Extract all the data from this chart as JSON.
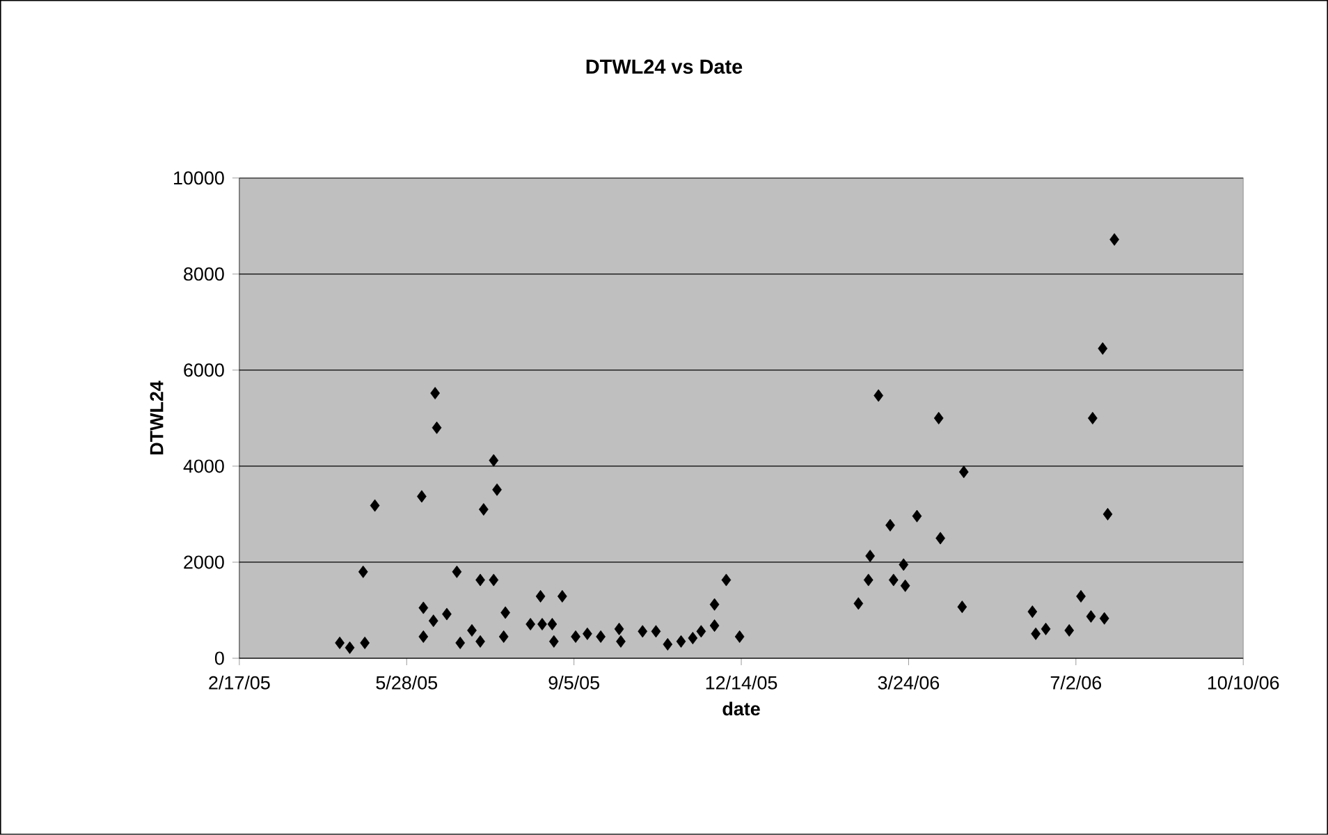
{
  "chart_data": {
    "type": "scatter",
    "title": "DTWL24 vs Date",
    "xlabel": "date",
    "ylabel": "DTWL24",
    "x": [
      "2005-04-18",
      "2005-04-24",
      "2005-05-03",
      "2005-05-02",
      "2005-05-09",
      "2005-06-06",
      "2005-06-07",
      "2005-06-07",
      "2005-06-13",
      "2005-06-14",
      "2005-06-15",
      "2005-06-21",
      "2005-06-27",
      "2005-06-29",
      "2005-07-06",
      "2005-07-11",
      "2005-07-13",
      "2005-07-11",
      "2005-07-19",
      "2005-07-19",
      "2005-07-21",
      "2005-07-25",
      "2005-07-26",
      "2005-08-10",
      "2005-08-16",
      "2005-08-17",
      "2005-08-23",
      "2005-08-24",
      "2005-08-29",
      "2005-09-06",
      "2005-09-13",
      "2005-09-21",
      "2005-10-02",
      "2005-10-03",
      "2005-10-16",
      "2005-10-24",
      "2005-10-31",
      "2005-11-08",
      "2005-11-15",
      "2005-11-20",
      "2005-11-28",
      "2005-11-28",
      "2005-12-05",
      "2005-12-13",
      "2006-02-22",
      "2006-02-28",
      "2006-03-01",
      "2006-03-06",
      "2006-03-13",
      "2006-03-15",
      "2006-03-21",
      "2006-03-22",
      "2006-03-29",
      "2006-04-11",
      "2006-04-12",
      "2006-04-25",
      "2006-04-26",
      "2006-06-06",
      "2006-06-08",
      "2006-06-14",
      "2006-06-28",
      "2006-07-05",
      "2006-07-12",
      "2006-07-11",
      "2006-07-18",
      "2006-07-19",
      "2006-07-21",
      "2006-07-25"
    ],
    "values": [
      320,
      220,
      320,
      1800,
      3180,
      3370,
      1050,
      450,
      780,
      5520,
      4800,
      920,
      1800,
      320,
      580,
      350,
      3100,
      1630,
      1630,
      4120,
      3510,
      450,
      950,
      710,
      1290,
      710,
      710,
      350,
      1290,
      450,
      510,
      450,
      610,
      350,
      560,
      560,
      290,
      350,
      420,
      560,
      680,
      1120,
      1630,
      450,
      1140,
      1630,
      2130,
      5470,
      2770,
      1630,
      1950,
      1510,
      2960,
      5000,
      2500,
      1070,
      3880,
      970,
      510,
      610,
      580,
      1290,
      5000,
      870,
      6450,
      830,
      3000,
      8720
    ],
    "color": "#000000",
    "marker": "diamond",
    "grid": "y",
    "xlim": [
      "2005-02-17",
      "2006-10-10"
    ],
    "xticks": [
      {
        "value": "2005-02-17",
        "label": "2/17/05"
      },
      {
        "value": "2005-05-28",
        "label": "5/28/05"
      },
      {
        "value": "2005-09-05",
        "label": "9/5/05"
      },
      {
        "value": "2005-12-14",
        "label": "12/14/05"
      },
      {
        "value": "2006-03-24",
        "label": "3/24/06"
      },
      {
        "value": "2006-07-02",
        "label": "7/2/06"
      },
      {
        "value": "2006-10-10",
        "label": "10/10/06"
      }
    ],
    "ylim": [
      0,
      10000
    ],
    "yticks": [
      0,
      2000,
      4000,
      6000,
      8000,
      10000
    ]
  }
}
